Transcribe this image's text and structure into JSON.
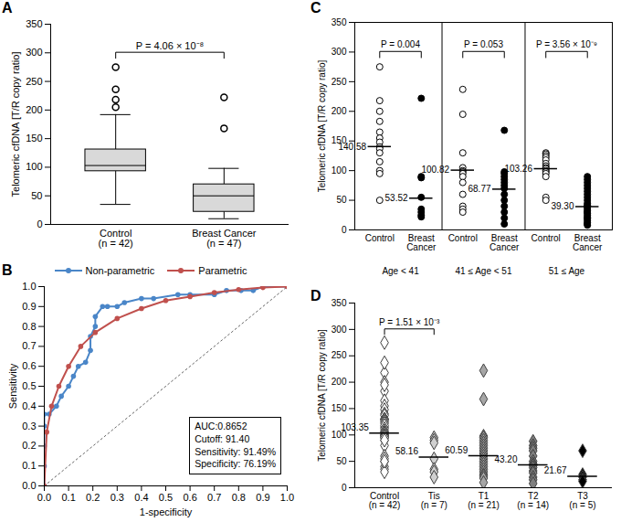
{
  "chart_data": [
    {
      "panel": "A",
      "type": "box",
      "categories": [
        "Control",
        "Breast Cancer"
      ],
      "n_labels": [
        "(n = 42)",
        "(n = 47)"
      ],
      "y_label": "Telomeric cfDNA [T/R copy ratio]",
      "ylim": [
        0,
        350
      ],
      "yticks": [
        0,
        50,
        100,
        150,
        200,
        250,
        300,
        350
      ],
      "color": "#d9d9d9",
      "boxes": [
        {
          "min": 35,
          "q1": 93,
          "median": 103,
          "q3": 131,
          "max": 192,
          "outliers": [
            205,
            218,
            236,
            275
          ]
        },
        {
          "min": 10,
          "q1": 22,
          "median": 50,
          "q3": 70,
          "max": 98,
          "outliers": [
            168,
            222
          ]
        }
      ],
      "annotations": [
        {
          "text": "P = 4.06 × 10⁻⁸",
          "between": [
            "Control",
            "Breast Cancer"
          ]
        }
      ]
    },
    {
      "panel": "B",
      "type": "line",
      "marker": "circle",
      "legend": "top",
      "x_label": "1-specificity",
      "y_label": "Sensitivity",
      "xlim": [
        0,
        1
      ],
      "ylim": [
        0,
        1
      ],
      "xticks": [
        0,
        0.1,
        0.2,
        0.3,
        0.4,
        0.5,
        0.6,
        0.7,
        0.8,
        0.9,
        1
      ],
      "yticks": [
        0,
        0.1,
        0.2,
        0.3,
        0.4,
        0.5,
        0.6,
        0.7,
        0.8,
        0.9,
        1
      ],
      "series": [
        {
          "name": "Non-parametric",
          "color": "#4a86c8",
          "x": [
            0,
            0,
            0,
            0,
            0,
            0.02,
            0.05,
            0.07,
            0.1,
            0.12,
            0.14,
            0.17,
            0.19,
            0.19,
            0.21,
            0.21,
            0.24,
            0.26,
            0.3,
            0.33,
            0.4,
            0.45,
            0.55,
            0.6,
            0.7,
            0.75,
            0.81,
            0.86,
            0.9,
            1
          ],
          "values": [
            0,
            0.1,
            0.2,
            0.3,
            0.36,
            0.36,
            0.4,
            0.45,
            0.5,
            0.55,
            0.6,
            0.62,
            0.68,
            0.75,
            0.8,
            0.85,
            0.9,
            0.9,
            0.9,
            0.92,
            0.94,
            0.94,
            0.96,
            0.96,
            0.96,
            0.98,
            0.98,
            0.98,
            1,
            1
          ]
        },
        {
          "name": "Parametric",
          "color": "#c0504d",
          "x": [
            0,
            0.01,
            0.03,
            0.06,
            0.1,
            0.15,
            0.21,
            0.3,
            0.4,
            0.5,
            0.6,
            0.7,
            0.8,
            0.9,
            1
          ],
          "values": [
            0,
            0.27,
            0.4,
            0.5,
            0.6,
            0.7,
            0.77,
            0.84,
            0.89,
            0.93,
            0.95,
            0.97,
            0.985,
            0.995,
            1
          ]
        }
      ],
      "annotation": [
        "AUC:0.8652",
        "Cutoff: 91.40",
        "Sensitivity: 91.49%",
        "Specificity: 76.19%"
      ]
    },
    {
      "panel": "C",
      "type": "scatter",
      "marker": "circle",
      "y_label": "Telomeric cfDNA [T/R copy ratio]",
      "ylim": [
        0,
        350
      ],
      "yticks": [
        0,
        50,
        100,
        150,
        200,
        250,
        300,
        350
      ],
      "groups": [
        {
          "label": "Age < 41",
          "annotation": "P = 0.004",
          "series": [
            {
              "name": "Control",
              "color": "#ffffff",
              "values": [
                275,
                218,
                200,
                183,
                165,
                155,
                148,
                140,
                137,
                130,
                115,
                100,
                95,
                50
              ],
              "mean": 140.58,
              "mean_label": "140.58"
            },
            {
              "name": "Breast Cancer",
              "color": "#000000",
              "values": [
                222,
                90,
                88,
                55,
                35,
                30,
                25,
                22
              ],
              "mean": 53.52,
              "mean_label": "53.52"
            }
          ]
        },
        {
          "label": "41 ≤ Age < 51",
          "annotation": "P = 0.053",
          "series": [
            {
              "name": "Control",
              "color": "#ffffff",
              "values": [
                237,
                195,
                130,
                105,
                100,
                98,
                95,
                90,
                80,
                60,
                40,
                35,
                30
              ],
              "mean": 100.82,
              "mean_label": "100.82"
            },
            {
              "name": "Breast Cancer",
              "color": "#000000",
              "values": [
                168,
                98,
                95,
                90,
                85,
                80,
                75,
                70,
                60,
                50,
                40,
                30,
                20,
                10
              ],
              "mean": 68.77,
              "mean_label": "68.77"
            }
          ]
        },
        {
          "label": "51 ≤ Age",
          "annotation": "P = 3.56 × 10⁻⁹",
          "series": [
            {
              "name": "Control",
              "color": "#ffffff",
              "values": [
                130,
                128,
                125,
                122,
                118,
                112,
                108,
                105,
                103,
                100,
                98,
                95,
                90,
                55,
                50
              ],
              "mean": 103.26,
              "mean_label": "103.26"
            },
            {
              "name": "Breast Cancer",
              "color": "#000000",
              "values": [
                90,
                85,
                80,
                75,
                70,
                65,
                60,
                55,
                50,
                45,
                42,
                40,
                38,
                35,
                32,
                30,
                28,
                25,
                22,
                20,
                18,
                15,
                12,
                10,
                8
              ],
              "mean": 39.3,
              "mean_label": "39.30"
            }
          ]
        }
      ]
    },
    {
      "panel": "D",
      "type": "scatter",
      "marker": "diamond",
      "categories": [
        "Control",
        "Tis",
        "T1",
        "T2",
        "T3"
      ],
      "n_labels": [
        "(n = 42)",
        "(n = 7)",
        "(n = 21)",
        "(n = 14)",
        "(n = 5)"
      ],
      "colors": [
        "#ffffff",
        "#d0d0d0",
        "#a6a6a6",
        "#7f7f7f",
        "#000000"
      ],
      "y_label": "Telomeric cfDNA [T/R copy ratio]",
      "ylim": [
        0,
        350
      ],
      "yticks": [
        0,
        50,
        100,
        150,
        200,
        250,
        300,
        350
      ],
      "values": [
        [
          275,
          218,
          200,
          183,
          165,
          155,
          148,
          140,
          137,
          130,
          115,
          100,
          95,
          50,
          237,
          195,
          130,
          105,
          100,
          98,
          95,
          90,
          80,
          60,
          40,
          35,
          30,
          130,
          128,
          125,
          122,
          118,
          112,
          108,
          105,
          103,
          100,
          98,
          95,
          90,
          55,
          50
        ],
        [
          95,
          90,
          85,
          55,
          35,
          30,
          20
        ],
        [
          222,
          168,
          98,
          95,
          90,
          85,
          80,
          75,
          70,
          65,
          60,
          55,
          50,
          45,
          40,
          35,
          30,
          25,
          22,
          18,
          10
        ],
        [
          88,
          80,
          75,
          70,
          60,
          50,
          45,
          42,
          38,
          32,
          28,
          20,
          15,
          8
        ],
        [
          70,
          25,
          20,
          15,
          12
        ]
      ],
      "means": [
        103.35,
        58.16,
        60.59,
        43.2,
        21.67
      ],
      "mean_labels": [
        "103.35",
        "58.16",
        "60.59",
        "43.20",
        "21.67"
      ],
      "annotations": [
        {
          "text": "P = 1.51 × 10⁻³",
          "between": [
            "Control",
            "Tis"
          ]
        }
      ]
    }
  ]
}
